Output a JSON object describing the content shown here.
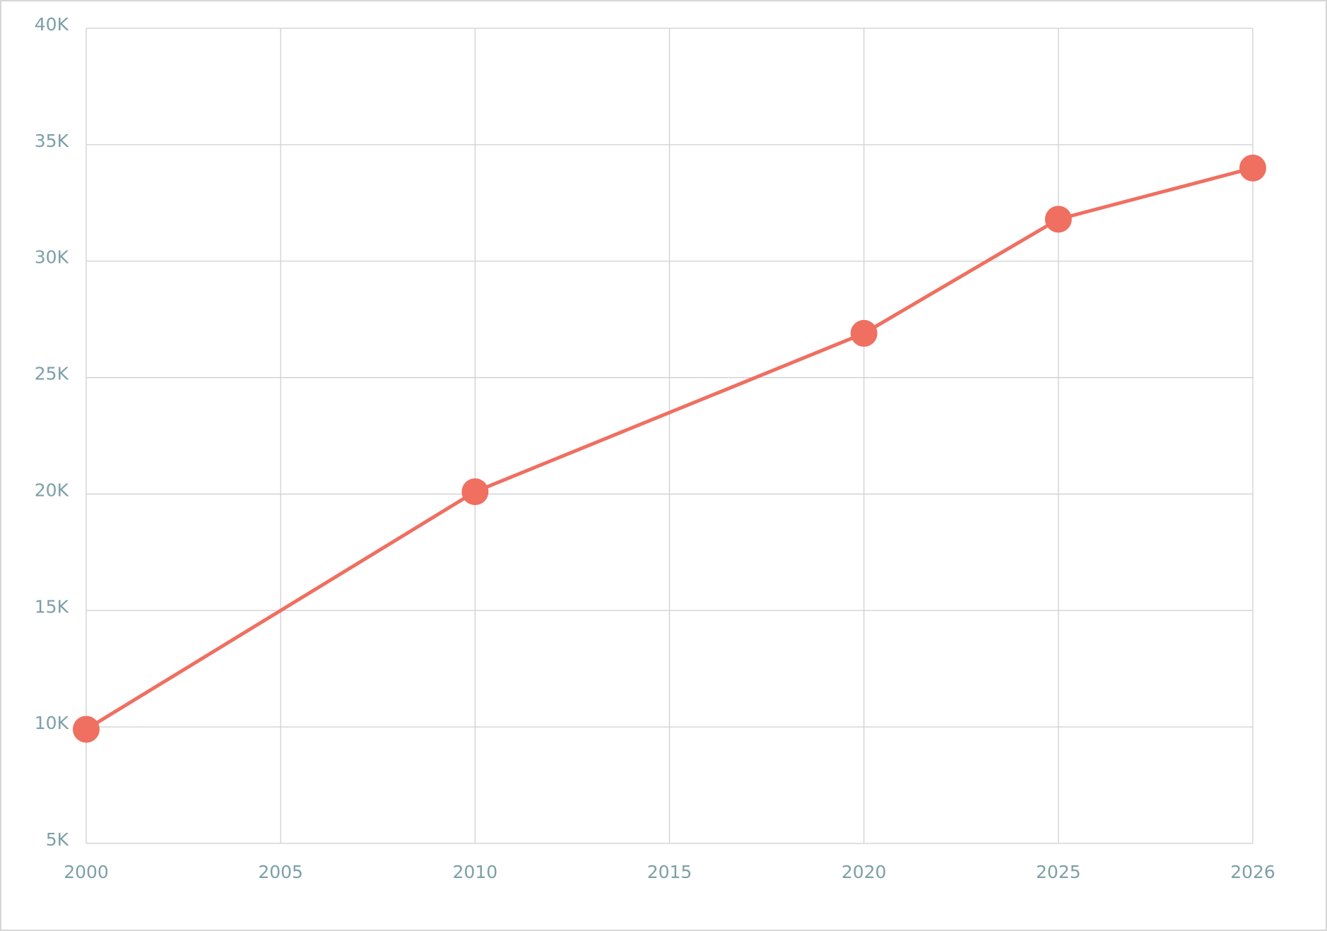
{
  "chart_data": {
    "type": "line",
    "categories": [
      "2000",
      "2005",
      "2010",
      "2015",
      "2020",
      "2025",
      "2026"
    ],
    "series": [
      {
        "color": "#ef6f61",
        "values": [
          9900,
          null,
          20100,
          null,
          26900,
          31800,
          34000
        ]
      }
    ],
    "connect_nulls": true,
    "markers": true,
    "ylim": [
      5000,
      40000
    ],
    "yticks": [
      {
        "value": 5000,
        "label": "5K"
      },
      {
        "value": 10000,
        "label": "10K"
      },
      {
        "value": 15000,
        "label": "15K"
      },
      {
        "value": 20000,
        "label": "20K"
      },
      {
        "value": 25000,
        "label": "25K"
      },
      {
        "value": 30000,
        "label": "30K"
      },
      {
        "value": 35000,
        "label": "35K"
      },
      {
        "value": 40000,
        "label": "40K"
      }
    ],
    "grid": true
  }
}
